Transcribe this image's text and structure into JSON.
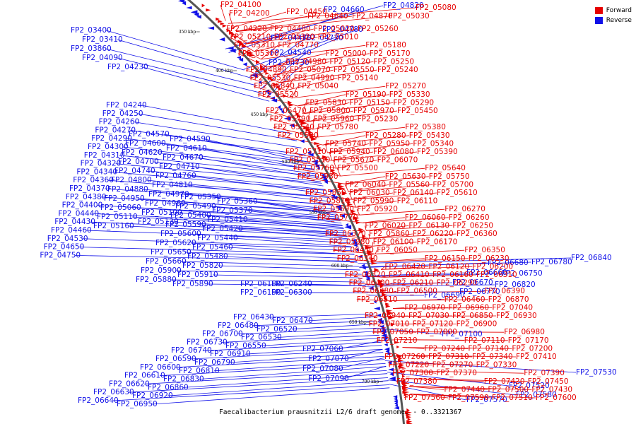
{
  "legend": {
    "forward_label": "Forward",
    "reverse_label": "Reverse",
    "forward_color": "#e60000",
    "reverse_color": "#1010e8"
  },
  "caption": "Faecalibacterium prausnitzii L2/6 draft genome. - 0..3321367",
  "scale_ticks": [
    "350 kbp",
    "400 kbp",
    "450 kbp",
    "500 kbp",
    "550 kbp",
    "600 kbp",
    "650 kbp",
    "700 kbp"
  ],
  "reverse_genes": [
    "FP2_03400",
    "FP2_03410",
    "FP2_03860",
    "FP2_04090",
    "FP2_04230",
    "FP2_04240",
    "FP2_04250",
    "FP2_04260",
    "FP2_04270",
    "FP2_04290",
    "FP2_04300",
    "FP2_04310",
    "FP2_04320",
    "FP2_04340",
    "FP2_04360",
    "FP2_04370",
    "FP2_04380",
    "FP2_04400",
    "FP2_04440",
    "FP2_04430",
    "FP2_04460",
    "FP2_04530",
    "FP2_04650",
    "FP2_04750",
    "FP2_04570",
    "FP2_04590",
    "FP2_04600",
    "FP2_04610",
    "FP2_04620",
    "FP2_04670",
    "FP2_04700",
    "FP2_04710",
    "FP2_04740",
    "FP2_04760",
    "FP2_04800",
    "FP2_04810",
    "FP2_04880",
    "FP2_04970",
    "FP2_04950",
    "FP2_04960",
    "FP2_05060",
    "FP2_05100",
    "FP2_05110",
    "FP2_05130",
    "FP2_05160",
    "FP2_05350",
    "FP2_05360",
    "FP2_05490",
    "FP2_05370",
    "FP2_05400",
    "FP2_05410",
    "FP2_05590",
    "FP2_05420",
    "FP2_05600",
    "FP2_05440",
    "FP2_05620",
    "FP2_05460",
    "FP2_05650",
    "FP2_05480",
    "FP2_05660",
    "FP2_05820",
    "FP2_05900",
    "FP2_05910",
    "FP2_05880",
    "FP2_05890",
    "FP2_06180",
    "FP2_06240",
    "FP2_06190",
    "FP2_06300",
    "FP2_06430",
    "FP2_06470",
    "FP2_06480",
    "FP2_06520",
    "FP2_06700",
    "FP2_06530",
    "FP2_06730",
    "FP2_06550",
    "FP2_06740",
    "FP2_06910",
    "FP2_06590",
    "FP2_06790",
    "FP2_06600",
    "FP2_06810",
    "FP2_06610",
    "FP2_06830",
    "FP2_06620",
    "FP2_06860",
    "FP2_06630",
    "FP2_06920",
    "FP2_06640",
    "FP2_06950",
    "FP2_07060",
    "FP2_07070",
    "FP2_07080",
    "FP2_07090",
    "FP2_04470",
    "FP2_04720",
    "FP2_04540",
    "FP2_04730",
    "FP2_04660",
    "FP2_04820",
    "FP2_04780",
    "FP2_06680",
    "FP2_06780",
    "FP2_06840",
    "FP2_06660",
    "FP2_06750",
    "FP2_06670",
    "FP2_06820",
    "FP2_06690",
    "FP2_06770",
    "FP2_07100",
    "FP2_07530",
    "FP2_07520",
    "FP2_07580",
    "FP2_07570"
  ],
  "forward_genes": [
    "FP2_04100",
    "FP2_04200",
    "FP2_04450",
    "FP2_04640",
    "FP2_04870",
    "FP2_05080",
    "FP2_05030",
    "FP2_04220",
    "FP2_04480",
    "FP2_05020",
    "FP2_05260",
    "FP2_05210",
    "FP2_05320",
    "FP2_05010",
    "FP2_05180",
    "FP2_05310",
    "FP2_04770",
    "FP2_05000",
    "FP2_05170",
    "FP2_05300",
    "FP2_04980",
    "FP2_05120",
    "FP2_05250",
    "FP2_04890",
    "FP2_05070",
    "FP2_05550",
    "FP2_05240",
    "FP2_05530",
    "FP2_04990",
    "FP2_05140",
    "FP2_05270",
    "FP2_05840",
    "FP2_05040",
    "FP2_05190",
    "FP2_05330",
    "FP2_05520",
    "FP2_05830",
    "FP2_05150",
    "FP2_05290",
    "FP2_05470",
    "FP2_05800",
    "FP2_05970",
    "FP2_05450",
    "FP2_05790",
    "FP2_05960",
    "FP2_05230",
    "FP2_05380",
    "FP2_05540",
    "FP2_05780",
    "FP2_05280",
    "FP2_05430",
    "FP2_05580",
    "FP2_05740",
    "FP2_05950",
    "FP2_05340",
    "FP2_05710",
    "FP2_05940",
    "FP2_06080",
    "FP2_05390",
    "FP2_05510",
    "FP2_05670",
    "FP2_06070",
    "FP2_05640",
    "FP2_05760",
    "FP2_05500",
    "FP2_05630",
    "FP2_05750",
    "FP2_05930",
    "FP2_06040",
    "FP2_05560",
    "FP2_05700",
    "FP2_05850",
    "FP2_06030",
    "FP2_06140",
    "FP2_05610",
    "FP2_05810",
    "FP2_05990",
    "FP2_06110",
    "FP2_06270",
    "FP2_05690",
    "FP2_05920",
    "FP2_06060",
    "FP2_06260",
    "FP2_05770",
    "FP2_06020",
    "FP2_06130",
    "FP2_06250",
    "FP2_06370",
    "FP2_05860",
    "FP2_06220",
    "FP2_06360",
    "FP2_05980",
    "FP2_06100",
    "FP2_06170",
    "FP2_06350",
    "FP2_06450",
    "FP2_06050",
    "FP2_06150",
    "FP2_06230",
    "FP2_06340",
    "FP2_06420",
    "FP2_06120",
    "FP2_06200",
    "FP2_06320",
    "FP2_06410",
    "FP2_06160",
    "FP2_06310",
    "FP2_06400",
    "FP2_06210",
    "FP2_06290",
    "FP2_06390",
    "FP2_06380",
    "FP2_06500",
    "FP2_06460",
    "FP2_06870",
    "FP2_06510",
    "FP2_06970",
    "FP2_06960",
    "FP2_07040",
    "FP2_06940",
    "FP2_07030",
    "FP2_06850",
    "FP2_06930",
    "FP2_07010",
    "FP2_07120",
    "FP2_06900",
    "FP2_06980",
    "FP2_07050",
    "FP2_07000",
    "FP2_07110",
    "FP2_07170",
    "FP2_07210",
    "FP2_07240",
    "FP2_07140",
    "FP2_07200",
    "FP2_07260",
    "FP2_07310",
    "FP2_07340",
    "FP2_07410",
    "FP2_07220",
    "FP2_07270",
    "FP2_07330",
    "FP2_07390",
    "FP2_07300",
    "FP2_07370",
    "FP2_07420",
    "FP2_07450",
    "FP2_07380",
    "FP2_07440",
    "FP2_07500",
    "FP2_07430",
    "FP2_07560",
    "FP2_07590",
    "FP2_07510",
    "FP2_07600"
  ]
}
